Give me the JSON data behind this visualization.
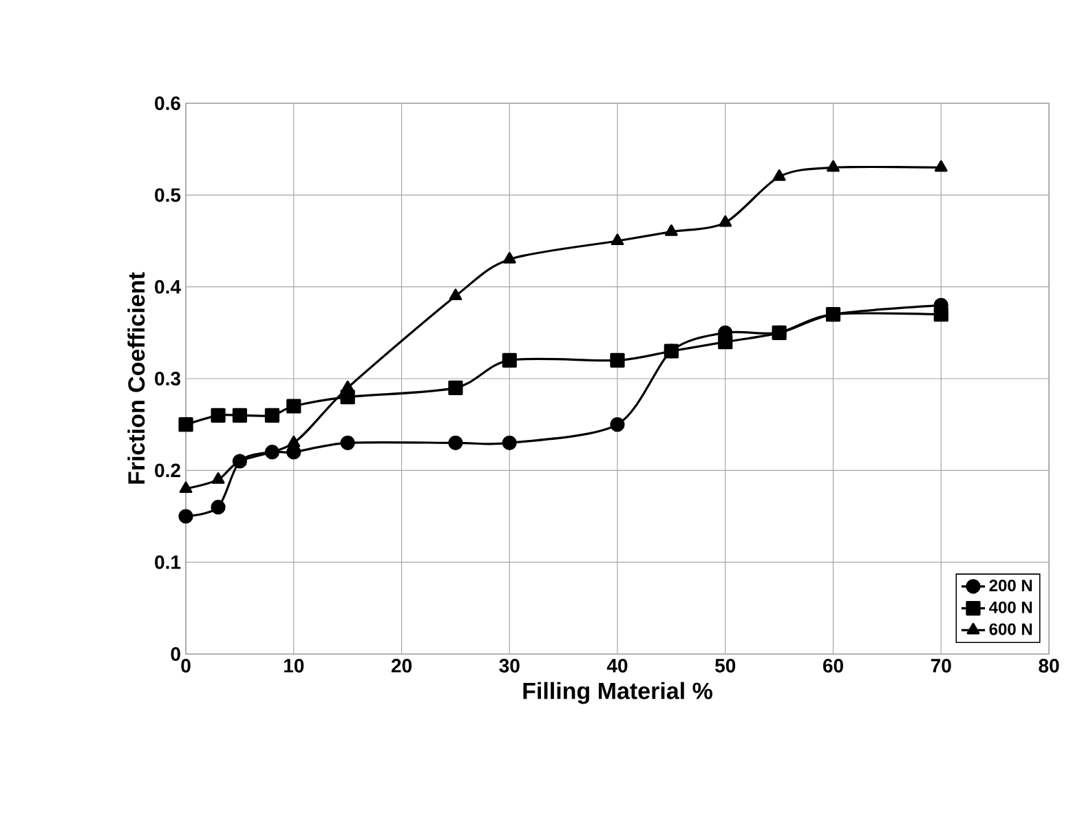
{
  "chart_data": {
    "type": "line",
    "xlabel": "Filling Material %",
    "ylabel": "Friction Coefficient",
    "xlim": [
      0,
      80
    ],
    "xticks": [
      0,
      10,
      20,
      30,
      40,
      50,
      60,
      70,
      80
    ],
    "ylim": [
      0,
      0.6
    ],
    "yticks": [
      0,
      0.1,
      0.2,
      0.3,
      0.4,
      0.5,
      0.6
    ],
    "grid": true,
    "legend": "bottom right",
    "series": [
      {
        "name": "200 N",
        "color": "#000000",
        "marker": "circle",
        "x": [
          0,
          3,
          5,
          8,
          10,
          15,
          25,
          30,
          40,
          45,
          50,
          55,
          60,
          70
        ],
        "values": [
          0.15,
          0.16,
          0.21,
          0.22,
          0.22,
          0.23,
          0.23,
          0.23,
          0.25,
          0.33,
          0.35,
          0.35,
          0.37,
          0.38
        ]
      },
      {
        "name": "400 N",
        "color": "#000000",
        "marker": "square",
        "x": [
          0,
          3,
          5,
          8,
          10,
          15,
          25,
          30,
          40,
          45,
          50,
          55,
          60,
          70
        ],
        "values": [
          0.25,
          0.26,
          0.26,
          0.26,
          0.27,
          0.28,
          0.29,
          0.32,
          0.32,
          0.33,
          0.34,
          0.35,
          0.37,
          0.37
        ]
      },
      {
        "name": "600 N",
        "color": "#000000",
        "marker": "triangle",
        "x": [
          0,
          3,
          5,
          10,
          15,
          25,
          30,
          40,
          45,
          50,
          55,
          60,
          70
        ],
        "values": [
          0.18,
          0.19,
          0.21,
          0.23,
          0.29,
          0.39,
          0.43,
          0.45,
          0.46,
          0.47,
          0.52,
          0.53,
          0.53
        ]
      }
    ]
  }
}
